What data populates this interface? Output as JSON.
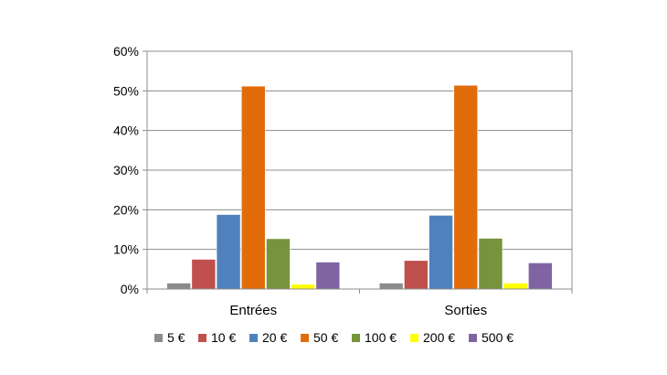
{
  "chart_data": {
    "type": "bar",
    "categories": [
      "Entrées",
      "Sorties"
    ],
    "series": [
      {
        "name": "5 €",
        "color": "#8c8c8c",
        "values": [
          1.5,
          1.5
        ]
      },
      {
        "name": "10 €",
        "color": "#c0504d",
        "values": [
          7.5,
          7.2
        ]
      },
      {
        "name": "20 €",
        "color": "#4f81bd",
        "values": [
          18.8,
          18.6
        ]
      },
      {
        "name": "50 €",
        "color": "#e36c0a",
        "values": [
          51.2,
          51.4
        ]
      },
      {
        "name": "100 €",
        "color": "#77933c",
        "values": [
          12.7,
          12.8
        ]
      },
      {
        "name": "200 €",
        "color": "#ffff00",
        "values": [
          1.2,
          1.5
        ]
      },
      {
        "name": "500 €",
        "color": "#8064a2",
        "values": [
          6.8,
          6.6
        ]
      }
    ],
    "ylim": [
      0,
      60
    ],
    "yticks": [
      "0%",
      "10%",
      "20%",
      "30%",
      "40%",
      "50%",
      "60%"
    ],
    "grid": true,
    "legend": "bottom"
  }
}
